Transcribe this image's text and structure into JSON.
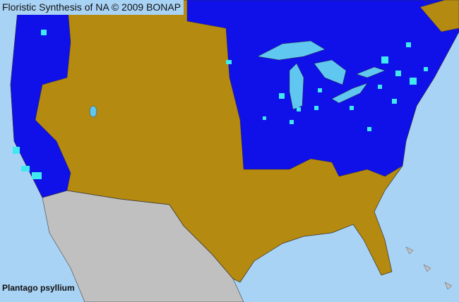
{
  "header": {
    "title": "Floristic Synthesis of NA © 2009 BONAP"
  },
  "map": {
    "species_label": "Plantago psyllium",
    "colors": {
      "ocean": "#a9d3f5",
      "present_native": "#b58a10",
      "present_county": "#1010e8",
      "rare_county": "#40e8f0",
      "not_covered": "#c0c0c0",
      "lakes": "#60c8f0"
    }
  }
}
